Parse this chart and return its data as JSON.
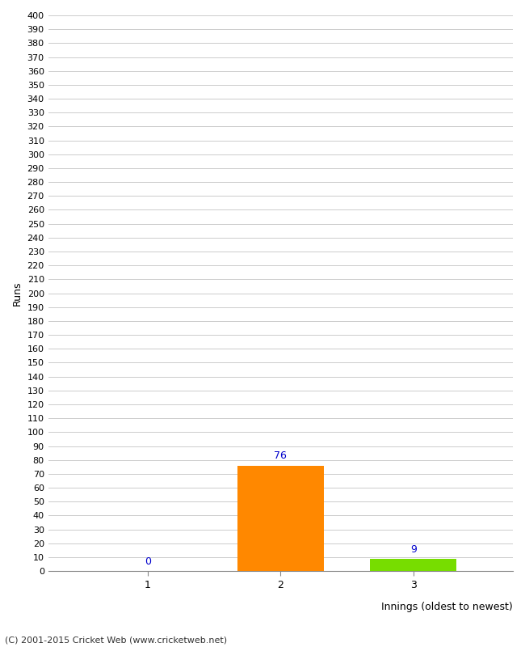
{
  "categories": [
    1,
    2,
    3
  ],
  "values": [
    0,
    76,
    9
  ],
  "bar_colors": [
    "#ff8800",
    "#ff8800",
    "#77dd00"
  ],
  "xlabel": "Innings (oldest to newest)",
  "ylabel": "Runs",
  "ylim": [
    0,
    400
  ],
  "ytick_step": 10,
  "background_color": "#ffffff",
  "grid_color": "#cccccc",
  "annotation_color": "#0000cc",
  "footer": "(C) 2001-2015 Cricket Web (www.cricketweb.net)",
  "bar_width": 0.65
}
